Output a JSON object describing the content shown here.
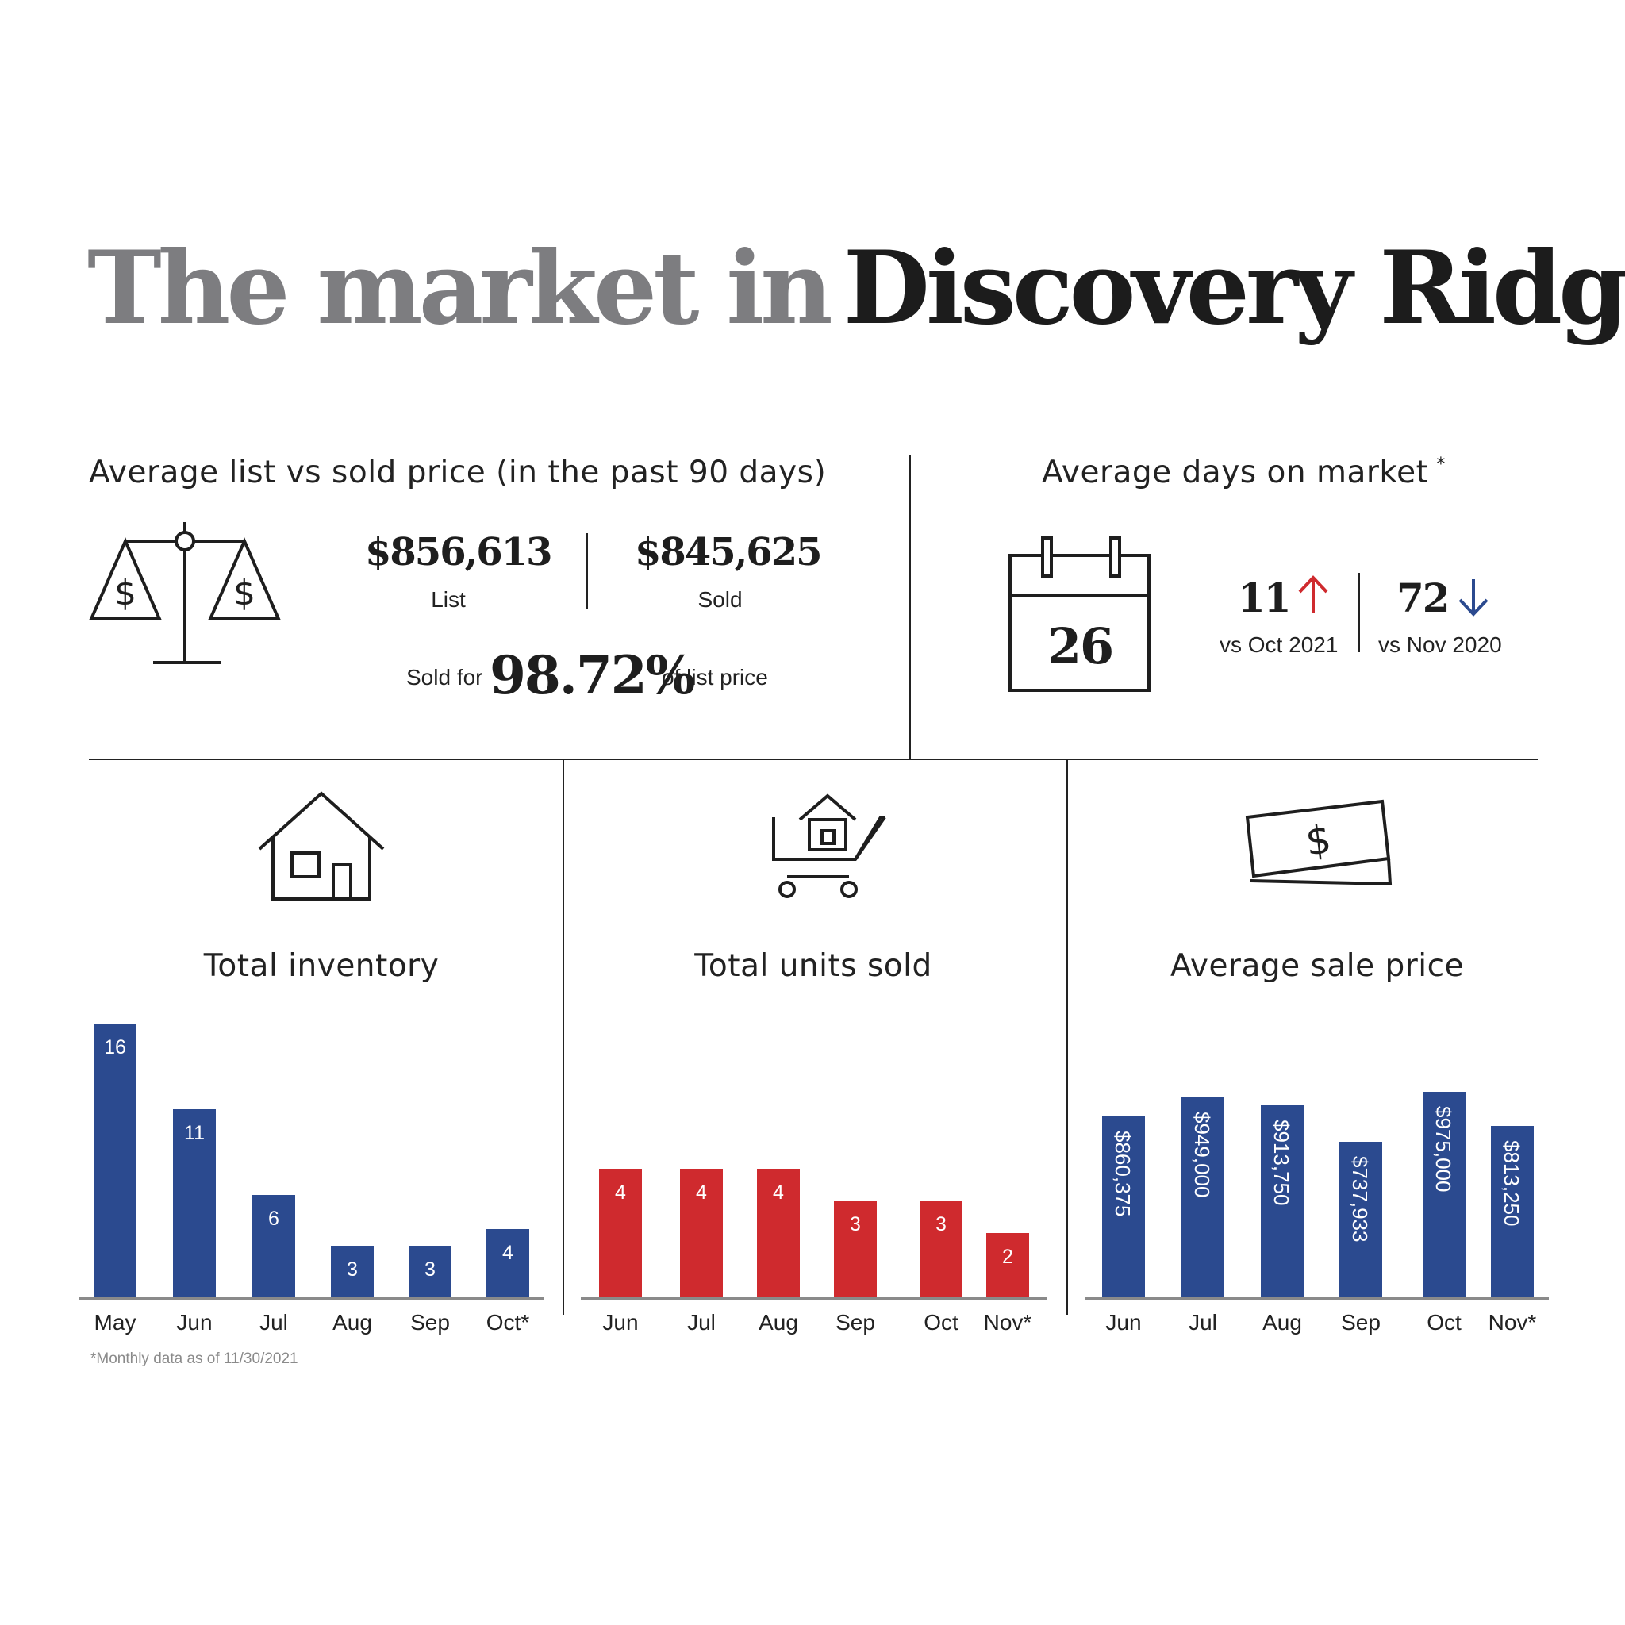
{
  "title": {
    "part1": "The market in",
    "part2": "Discovery Ridge"
  },
  "price_section": {
    "heading": "Average list vs sold price (in the past 90 days)",
    "list_value": "$856,613",
    "list_label": "List",
    "sold_value": "$845,625",
    "sold_label": "Sold",
    "sold_for_prefix": "Sold for",
    "sold_for_pct": "98.72%",
    "sold_for_suffix": "of list price",
    "icon": "scale-icon"
  },
  "days_section": {
    "heading": "Average days on market",
    "heading_mark": "*",
    "days_value": "26",
    "compare1_value": "11",
    "compare1_label": "vs Oct 2021",
    "compare1_direction": "up",
    "compare2_value": "72",
    "compare2_label": "vs Nov 2020",
    "compare2_direction": "down",
    "icon": "calendar-icon"
  },
  "colors": {
    "blue": "#2b4a8f",
    "red": "#cf2a2e",
    "up_arrow": "#cf2a2e",
    "down_arrow": "#2b4a8f"
  },
  "footnote": "*Monthly data as of 11/30/2021",
  "chart_data": [
    {
      "type": "bar",
      "title": "Total inventory",
      "icon": "house-icon",
      "color": "#2b4a8f",
      "categories": [
        "May",
        "Jun",
        "Jul",
        "Aug",
        "Sep",
        "Oct*"
      ],
      "values": [
        16,
        11,
        6,
        3,
        3,
        4
      ],
      "labels": [
        "16",
        "11",
        "6",
        "3",
        "3",
        "4"
      ],
      "label_orientation": "horizontal",
      "ylim": [
        0,
        16
      ]
    },
    {
      "type": "bar",
      "title": "Total units sold",
      "icon": "shopping-cart-icon",
      "color": "#cf2a2e",
      "categories": [
        "Jun",
        "Jul",
        "Aug",
        "Sep",
        "Oct",
        "Nov*"
      ],
      "values": [
        4,
        4,
        4,
        3,
        3,
        2
      ],
      "labels": [
        "4",
        "4",
        "4",
        "3",
        "3",
        "2"
      ],
      "label_orientation": "horizontal",
      "ylim": [
        0,
        8.5
      ]
    },
    {
      "type": "bar",
      "title": "Average sale price",
      "icon": "dollar-bill-icon",
      "color": "#2b4a8f",
      "categories": [
        "Jun",
        "Jul",
        "Aug",
        "Sep",
        "Oct",
        "Nov*"
      ],
      "values": [
        860375,
        949000,
        913750,
        737933,
        975000,
        813250
      ],
      "labels": [
        "$860,375",
        "$949,000",
        "$913,750",
        "$737,933",
        "$975,000",
        "$813,250"
      ],
      "label_orientation": "vertical",
      "ylim": [
        0,
        1300000
      ]
    }
  ]
}
